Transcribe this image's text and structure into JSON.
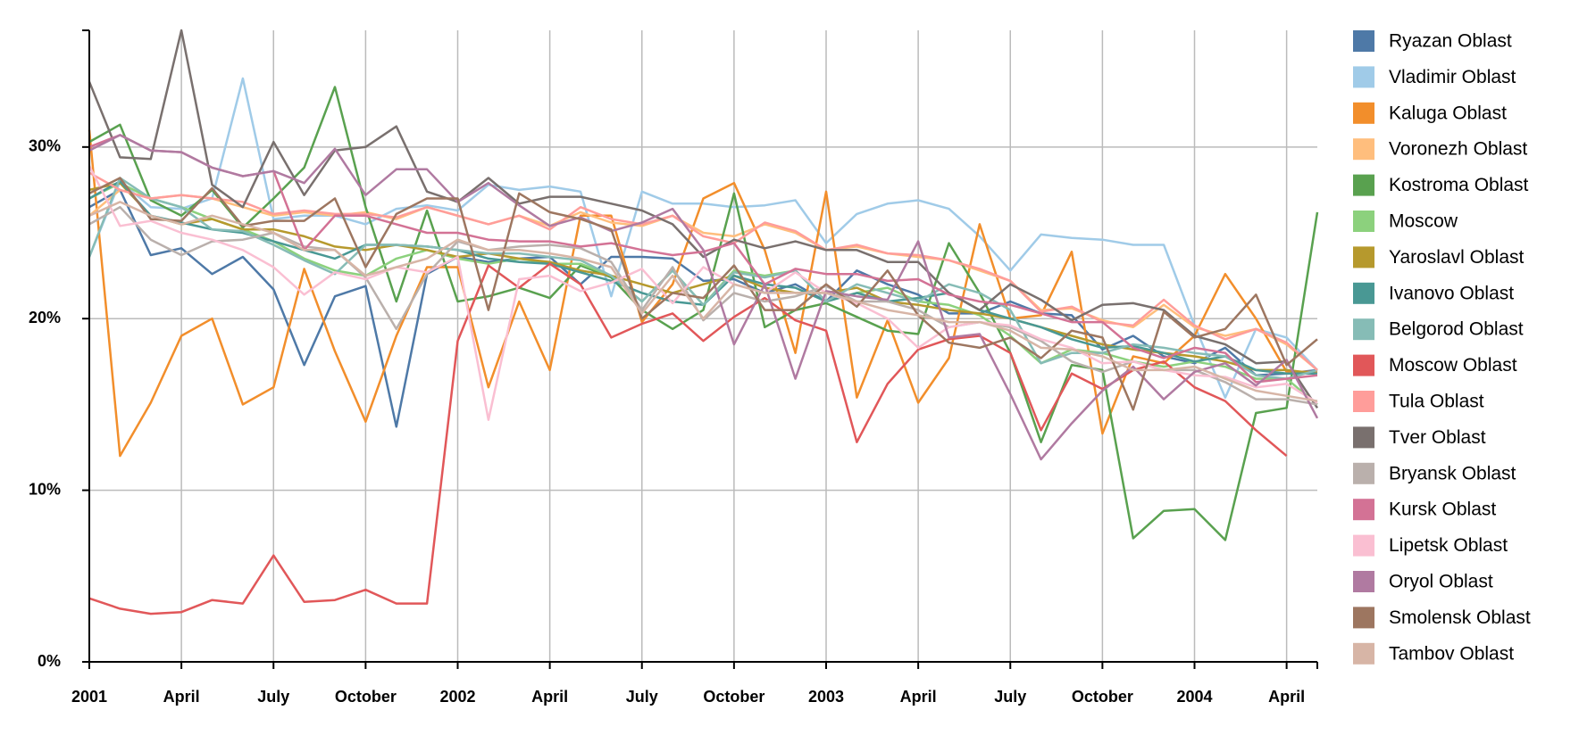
{
  "chart_data": {
    "type": "line",
    "x": [
      "2001-01",
      "2001-02",
      "2001-03",
      "2001-04",
      "2001-05",
      "2001-06",
      "2001-07",
      "2001-08",
      "2001-09",
      "2001-10",
      "2001-11",
      "2001-12",
      "2002-01",
      "2002-02",
      "2002-03",
      "2002-04",
      "2002-05",
      "2002-06",
      "2002-07",
      "2002-08",
      "2002-09",
      "2002-10",
      "2002-11",
      "2002-12",
      "2003-01",
      "2003-02",
      "2003-03",
      "2003-04",
      "2003-05",
      "2003-06",
      "2003-07",
      "2003-08",
      "2003-09",
      "2003-10",
      "2003-11",
      "2003-12",
      "2004-01",
      "2004-02",
      "2004-03",
      "2004-04",
      "2004-05"
    ],
    "xticks": [
      {
        "value": "2001-01",
        "label": "2001"
      },
      {
        "value": "2001-04",
        "label": "April"
      },
      {
        "value": "2001-07",
        "label": "July"
      },
      {
        "value": "2001-10",
        "label": "October"
      },
      {
        "value": "2002-01",
        "label": "2002"
      },
      {
        "value": "2002-04",
        "label": "April"
      },
      {
        "value": "2002-07",
        "label": "July"
      },
      {
        "value": "2002-10",
        "label": "October"
      },
      {
        "value": "2003-01",
        "label": "2003"
      },
      {
        "value": "2003-04",
        "label": "April"
      },
      {
        "value": "2003-07",
        "label": "July"
      },
      {
        "value": "2003-10",
        "label": "October"
      },
      {
        "value": "2004-01",
        "label": "2004"
      },
      {
        "value": "2004-04",
        "label": "April"
      }
    ],
    "ylim": [
      0,
      36.8
    ],
    "yticks": [
      {
        "value": 0,
        "label": "0%"
      },
      {
        "value": 10,
        "label": "10%"
      },
      {
        "value": 20,
        "label": "20%"
      },
      {
        "value": 30,
        "label": "30%"
      }
    ],
    "grid": true,
    "legend": "right",
    "series": [
      {
        "name": "Ryazan Oblast",
        "color": "#4e79a7",
        "values": [
          26.5,
          27.5,
          23.7,
          24.1,
          22.6,
          23.6,
          21.7,
          17.3,
          21.3,
          21.9,
          13.7,
          22.6,
          23.6,
          23.3,
          23.5,
          23.6,
          22.0,
          23.6,
          23.6,
          23.5,
          22.2,
          22.3,
          21.5,
          22.0,
          21.0,
          22.8,
          22.0,
          21.4,
          20.3,
          20.3,
          21.0,
          20.3,
          20.2,
          18.2,
          19.0,
          17.8,
          17.4,
          18.3,
          16.7,
          16.8,
          17.0
        ]
      },
      {
        "name": "Vladimir Oblast",
        "color": "#a0cbe8",
        "values": [
          23.6,
          28.0,
          26.5,
          26.4,
          27.0,
          34.0,
          25.8,
          26.0,
          26.0,
          25.5,
          26.4,
          26.6,
          26.3,
          27.8,
          27.5,
          27.7,
          27.4,
          21.3,
          27.4,
          26.7,
          26.7,
          26.5,
          26.6,
          26.9,
          24.4,
          26.1,
          26.7,
          26.9,
          26.4,
          24.8,
          22.8,
          24.9,
          24.7,
          24.6,
          24.3,
          24.3,
          19.6,
          15.4,
          19.4,
          18.9,
          17.0
        ]
      },
      {
        "name": "Kaluga Oblast",
        "color": "#f28e2b",
        "values": [
          31.0,
          12.0,
          15.1,
          19.0,
          20.0,
          15.0,
          16.0,
          22.9,
          18.1,
          14.0,
          19.0,
          23.0,
          23.0,
          16.0,
          21.0,
          17.0,
          26.0,
          26.0,
          19.8,
          22.0,
          27.0,
          27.9,
          24.0,
          18.0,
          27.4,
          15.4,
          19.9,
          15.1,
          17.7,
          25.5,
          20.0,
          20.2,
          23.9,
          13.3,
          17.8,
          17.4,
          19.0,
          22.6,
          20.0,
          16.9,
          16.9
        ]
      },
      {
        "name": "Voronezh Oblast",
        "color": "#ffbe7d",
        "values": [
          26.0,
          27.5,
          27.0,
          27.2,
          27.0,
          26.5,
          26.0,
          26.2,
          26.0,
          26.2,
          25.8,
          26.5,
          26.0,
          25.5,
          26.0,
          25.4,
          26.2,
          25.6,
          25.4,
          26.0,
          25.0,
          24.8,
          25.5,
          25.0,
          24.0,
          24.2,
          23.8,
          23.6,
          23.4,
          22.8,
          22.2,
          20.5,
          20.6,
          19.9,
          19.5,
          20.8,
          19.5,
          19.0,
          19.4,
          18.5,
          17.0
        ]
      },
      {
        "name": "Kostroma Oblast",
        "color": "#59a14f",
        "values": [
          30.3,
          31.3,
          26.9,
          26.0,
          27.5,
          25.3,
          27.0,
          28.8,
          33.5,
          26.5,
          21.0,
          26.3,
          21.0,
          21.3,
          21.8,
          21.2,
          23.1,
          22.4,
          20.5,
          19.4,
          20.5,
          27.3,
          19.5,
          20.5,
          20.9,
          20.1,
          19.3,
          19.1,
          24.4,
          21.5,
          18.0,
          12.8,
          17.3,
          17.0,
          7.2,
          8.8,
          8.9,
          7.1,
          14.5,
          14.8,
          26.2
        ]
      },
      {
        "name": "Moscow",
        "color": "#8cd17d",
        "values": [
          27.0,
          27.9,
          27.0,
          26.5,
          25.8,
          25.2,
          24.5,
          23.5,
          22.8,
          22.5,
          23.5,
          24.0,
          23.5,
          23.2,
          23.5,
          23.2,
          23.2,
          22.5,
          21.0,
          22.8,
          20.8,
          22.8,
          22.5,
          22.8,
          21.0,
          21.5,
          21.8,
          21.0,
          20.8,
          20.2,
          19.0,
          17.4,
          18.2,
          18.0,
          17.5,
          17.2,
          17.5,
          17.2,
          16.5,
          16.5,
          15.0
        ]
      },
      {
        "name": "Yaroslavl Oblast",
        "color": "#b6992d",
        "values": [
          27.5,
          27.9,
          26.0,
          25.5,
          25.8,
          25.2,
          25.2,
          24.8,
          24.2,
          24.0,
          24.3,
          24.0,
          23.6,
          23.8,
          23.5,
          23.3,
          22.8,
          22.5,
          22.0,
          21.5,
          22.0,
          22.5,
          21.8,
          21.5,
          21.5,
          21.8,
          21.0,
          20.8,
          20.5,
          20.3,
          20.0,
          19.5,
          19.0,
          18.5,
          18.2,
          18.0,
          17.8,
          17.5,
          17.0,
          17.0,
          16.8
        ]
      },
      {
        "name": "Ivanovo Oblast",
        "color": "#499894",
        "values": [
          27.0,
          28.0,
          26.0,
          25.6,
          25.2,
          25.0,
          24.5,
          24.0,
          23.5,
          24.3,
          24.3,
          24.2,
          24.0,
          23.5,
          23.3,
          23.2,
          22.7,
          22.2,
          21.5,
          21.0,
          20.8,
          22.5,
          22.0,
          21.8,
          21.0,
          21.5,
          21.0,
          21.2,
          21.5,
          20.5,
          20.0,
          19.5,
          18.8,
          18.3,
          18.4,
          18.0,
          17.5,
          17.8,
          17.0,
          16.8,
          16.8
        ]
      },
      {
        "name": "Belgorod Oblast",
        "color": "#86bcb6",
        "values": [
          23.6,
          28.2,
          27.0,
          26.5,
          25.2,
          25.1,
          24.3,
          23.4,
          22.6,
          24.3,
          24.3,
          24.2,
          24.0,
          23.8,
          23.8,
          23.6,
          23.4,
          22.5,
          21.0,
          22.8,
          20.8,
          22.7,
          22.4,
          22.8,
          21.0,
          22.0,
          21.5,
          21.0,
          22.0,
          21.5,
          20.5,
          17.4,
          18.0,
          18.0,
          18.5,
          18.3,
          18.0,
          17.8,
          16.7,
          16.5,
          17.0
        ]
      },
      {
        "name": "Moscow Oblast",
        "color": "#e15759",
        "values": [
          3.7,
          3.1,
          2.8,
          2.9,
          3.6,
          3.4,
          6.2,
          3.5,
          3.6,
          4.2,
          3.4,
          3.4,
          18.7,
          23.1,
          21.8,
          23.2,
          22.0,
          18.9,
          19.7,
          20.3,
          18.7,
          20.1,
          21.2,
          19.9,
          19.3,
          12.8,
          16.2,
          18.2,
          18.8,
          19.0,
          18.0,
          13.5,
          16.8,
          15.9,
          17.0,
          17.5,
          16.0,
          15.2,
          13.5,
          12.0,
          null
        ]
      },
      {
        "name": "Tula Oblast",
        "color": "#ff9d9a",
        "values": [
          28.5,
          27.5,
          27.0,
          27.2,
          27.0,
          26.8,
          26.1,
          26.3,
          26.1,
          26.1,
          25.9,
          26.5,
          26.0,
          25.5,
          26.0,
          25.2,
          26.5,
          25.8,
          25.5,
          26.0,
          24.8,
          24.4,
          25.6,
          25.1,
          24.0,
          24.3,
          23.8,
          23.7,
          23.4,
          22.9,
          22.2,
          20.4,
          20.7,
          19.8,
          19.6,
          21.1,
          19.6,
          18.8,
          19.4,
          18.6,
          17.0
        ]
      },
      {
        "name": "Tver Oblast",
        "color": "#79706e",
        "values": [
          33.8,
          29.4,
          29.3,
          36.8,
          27.8,
          26.5,
          30.3,
          27.2,
          29.8,
          30.0,
          31.2,
          27.4,
          26.8,
          28.2,
          26.7,
          27.1,
          27.1,
          26.7,
          26.3,
          25.5,
          23.6,
          24.6,
          24.1,
          24.5,
          24.0,
          24.0,
          23.3,
          23.3,
          21.5,
          20.5,
          22.0,
          21.1,
          19.9,
          20.8,
          20.9,
          20.5,
          19.0,
          18.5,
          17.4,
          17.5,
          14.8
        ]
      },
      {
        "name": "Bryansk Oblast",
        "color": "#bab0ac",
        "values": [
          25.5,
          26.5,
          24.6,
          23.7,
          24.5,
          24.6,
          25.0,
          24.2,
          24.0,
          22.4,
          19.4,
          22.6,
          24.5,
          24.0,
          24.2,
          24.3,
          24.1,
          23.3,
          20.5,
          23.0,
          19.9,
          21.5,
          21.0,
          21.3,
          21.9,
          21.0,
          21.0,
          20.5,
          19.5,
          19.8,
          19.5,
          18.7,
          17.5,
          16.9,
          17.5,
          17.0,
          17.0,
          16.3,
          15.3,
          15.3,
          15.0
        ]
      },
      {
        "name": "Kursk Oblast",
        "color": "#d37295",
        "values": [
          30.0,
          30.7,
          29.8,
          29.7,
          28.8,
          28.3,
          28.6,
          24.0,
          26.0,
          26.0,
          25.5,
          25.0,
          25.0,
          24.6,
          24.5,
          24.5,
          24.2,
          24.4,
          24.0,
          23.7,
          23.9,
          24.4,
          22.0,
          22.9,
          22.6,
          22.6,
          22.2,
          22.3,
          21.4,
          21.0,
          20.8,
          20.3,
          19.8,
          19.8,
          18.3,
          17.7,
          18.3,
          18.0,
          16.3,
          16.5,
          16.7
        ]
      },
      {
        "name": "Lipetsk Oblast",
        "color": "#fabfd2",
        "values": [
          28.9,
          25.4,
          25.7,
          25.0,
          24.6,
          24.0,
          23.0,
          21.4,
          22.7,
          22.3,
          23.0,
          22.7,
          23.6,
          14.1,
          22.3,
          22.5,
          21.6,
          22.1,
          22.9,
          20.9,
          23.0,
          22.0,
          21.5,
          22.7,
          21.5,
          20.9,
          20.0,
          18.3,
          19.5,
          19.8,
          19.6,
          18.8,
          18.3,
          17.4,
          17.5,
          17.0,
          16.7,
          16.6,
          16.0,
          16.2,
          15.1
        ]
      },
      {
        "name": "Oryol Oblast",
        "color": "#b07aa1",
        "values": [
          29.8,
          30.7,
          29.8,
          29.7,
          28.8,
          28.3,
          28.6,
          27.9,
          29.9,
          27.2,
          28.7,
          28.7,
          26.8,
          27.9,
          26.6,
          25.4,
          25.9,
          25.1,
          25.6,
          26.4,
          24.0,
          18.5,
          22.0,
          16.5,
          21.6,
          21.3,
          21.1,
          24.5,
          18.9,
          19.1,
          15.6,
          11.8,
          13.9,
          15.8,
          17.2,
          15.3,
          16.9,
          17.4,
          16.1,
          17.6,
          14.2
        ]
      },
      {
        "name": "Smolensk Oblast",
        "color": "#9d7660",
        "values": [
          27.3,
          28.2,
          25.8,
          25.7,
          27.6,
          25.4,
          25.7,
          25.7,
          27.0,
          23.0,
          26.1,
          27.0,
          27.0,
          20.5,
          27.3,
          26.2,
          25.8,
          25.2,
          20.0,
          21.5,
          21.2,
          23.1,
          20.5,
          20.5,
          22.0,
          20.7,
          22.8,
          20.2,
          18.6,
          18.3,
          18.9,
          17.7,
          19.3,
          18.9,
          14.7,
          20.4,
          18.9,
          19.4,
          21.4,
          17.3,
          18.8
        ]
      },
      {
        "name": "Tambov Oblast",
        "color": "#d7b5a6",
        "values": [
          26.0,
          26.8,
          26.0,
          25.5,
          26.0,
          25.5,
          25.0,
          24.0,
          24.0,
          22.5,
          23.0,
          23.5,
          24.6,
          24.0,
          24.0,
          23.8,
          23.5,
          23.0,
          20.3,
          22.5,
          20.0,
          22.0,
          21.5,
          21.5,
          21.5,
          21.0,
          20.5,
          20.2,
          19.8,
          19.8,
          19.3,
          18.3,
          18.2,
          17.8,
          17.0,
          17.0,
          17.2,
          16.5,
          15.8,
          15.5,
          15.2
        ]
      }
    ]
  }
}
